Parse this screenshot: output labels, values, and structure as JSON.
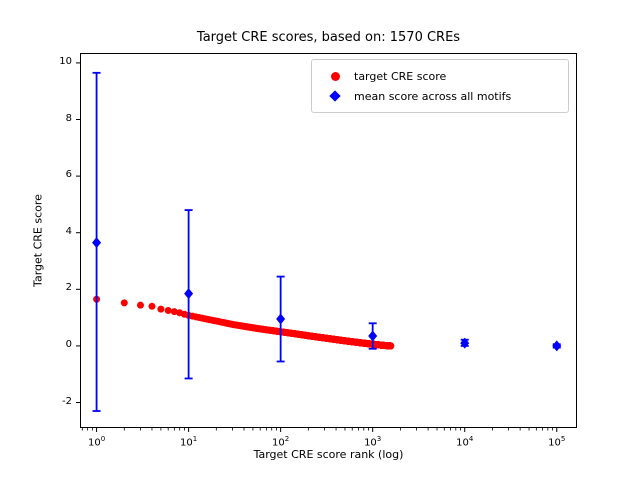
{
  "chart_data": {
    "type": "scatter",
    "title": "Target CRE scores, based on: 1570 CREs",
    "xlabel": "Target CRE score rank (log)",
    "ylabel": "Target CRE score",
    "x_scale": "log",
    "xlim_log10": [
      -0.18,
      5.22
    ],
    "ylim": [
      -2.9,
      10.35
    ],
    "x_tick_exponents": [
      0,
      1,
      2,
      3,
      4,
      5
    ],
    "x_tick_base": "10",
    "y_ticks": [
      -2,
      0,
      2,
      4,
      6,
      8,
      10
    ],
    "grid": false,
    "legend": {
      "position": "upper right",
      "items": [
        {
          "label": "target CRE score",
          "marker": "circle",
          "color": "#ff0000"
        },
        {
          "label": "mean score across all motifs",
          "marker": "diamond",
          "color": "#0000ff"
        }
      ]
    },
    "series": [
      {
        "name": "target CRE score",
        "type": "scatter",
        "marker": "circle",
        "color": "#ff0000",
        "n_points": 1570,
        "points_sampled": [
          [
            1,
            1.65
          ],
          [
            2,
            1.52
          ],
          [
            3,
            1.44
          ],
          [
            4,
            1.4
          ],
          [
            5,
            1.3
          ],
          [
            6,
            1.25
          ],
          [
            7,
            1.21
          ],
          [
            8,
            1.17
          ],
          [
            9,
            1.12
          ],
          [
            10,
            1.08
          ],
          [
            15,
            0.96
          ],
          [
            20,
            0.88
          ],
          [
            30,
            0.76
          ],
          [
            50,
            0.64
          ],
          [
            70,
            0.57
          ],
          [
            100,
            0.5
          ],
          [
            150,
            0.42
          ],
          [
            200,
            0.36
          ],
          [
            300,
            0.28
          ],
          [
            500,
            0.18
          ],
          [
            700,
            0.12
          ],
          [
            1000,
            0.06
          ],
          [
            1300,
            0.02
          ],
          [
            1570,
            0.0
          ]
        ]
      },
      {
        "name": "mean score across all motifs",
        "type": "errorbar",
        "marker": "diamond",
        "color": "#0000ff",
        "points": [
          {
            "x": 1,
            "y": 3.65,
            "lo": -2.3,
            "hi": 9.65
          },
          {
            "x": 10,
            "y": 1.85,
            "lo": -1.15,
            "hi": 4.8
          },
          {
            "x": 100,
            "y": 0.95,
            "lo": -0.55,
            "hi": 2.45
          },
          {
            "x": 1000,
            "y": 0.35,
            "lo": -0.1,
            "hi": 0.8
          },
          {
            "x": 10000,
            "y": 0.1,
            "lo": 0.0,
            "hi": 0.22
          },
          {
            "x": 100000,
            "y": 0.0,
            "lo": -0.06,
            "hi": 0.06
          }
        ]
      }
    ]
  }
}
